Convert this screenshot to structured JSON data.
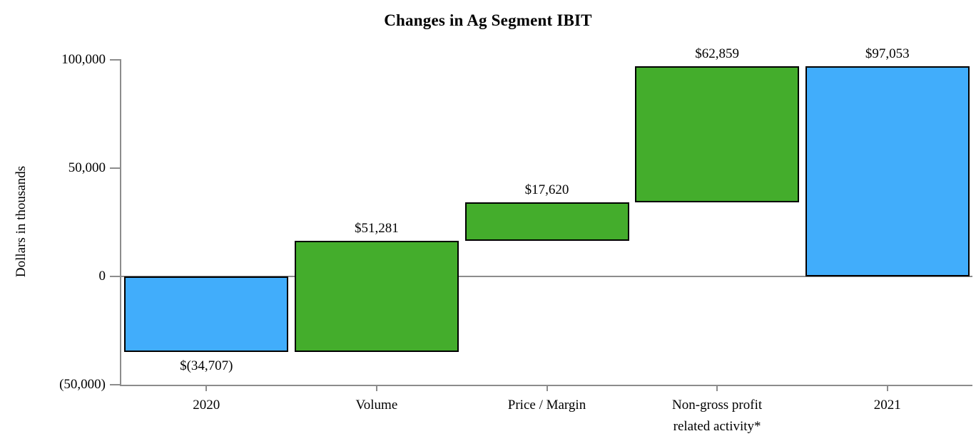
{
  "chart_data": {
    "type": "bar",
    "subtype": "waterfall",
    "title": "Changes in Ag Segment IBIT",
    "ylabel": "Dollars in thousands",
    "grid": "zero-line-only",
    "legend": "none",
    "y_axis": {
      "min": -50000,
      "max": 100000,
      "tick_values": [
        100000,
        50000,
        0,
        -50000
      ],
      "tick_labels": [
        "100,000",
        "50,000",
        "0",
        "(50,000)"
      ]
    },
    "colors": {
      "total_bar": "#41adfb",
      "change_bar": "#44ad2c",
      "bar_border": "#000000",
      "axis": "#8c8c8c",
      "text": "#000000"
    },
    "bars": [
      {
        "category_lines": [
          "2020"
        ],
        "value": -34707,
        "value_label": "$(34,707)",
        "from": 0,
        "to": -34707,
        "role": "total",
        "label_position": "below"
      },
      {
        "category_lines": [
          "Volume"
        ],
        "value": 51281,
        "value_label": "$51,281",
        "from": -34707,
        "to": 16574,
        "role": "change",
        "label_position": "above"
      },
      {
        "category_lines": [
          "Price / Margin"
        ],
        "value": 17620,
        "value_label": "$17,620",
        "from": 16574,
        "to": 34194,
        "role": "change",
        "label_position": "above"
      },
      {
        "category_lines": [
          "Non-gross profit",
          "related activity*"
        ],
        "value": 62859,
        "value_label": "$62,859",
        "from": 34194,
        "to": 97053,
        "role": "change",
        "label_position": "above"
      },
      {
        "category_lines": [
          "2021"
        ],
        "value": 97053,
        "value_label": "$97,053",
        "from": 0,
        "to": 97053,
        "role": "total",
        "label_position": "above"
      }
    ]
  }
}
